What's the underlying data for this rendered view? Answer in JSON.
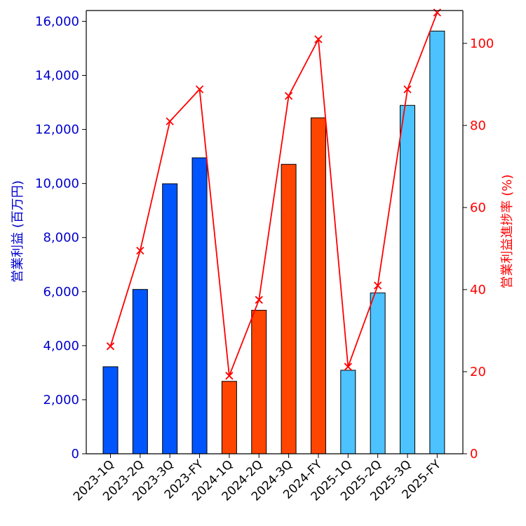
{
  "chart_data": {
    "type": "bar",
    "categories": [
      "2023-1Q",
      "2023-2Q",
      "2023-3Q",
      "2023-FY",
      "2024-1Q",
      "2024-2Q",
      "2024-3Q",
      "2024-FY",
      "2025-1Q",
      "2025-2Q",
      "2025-3Q",
      "2025-FY"
    ],
    "bar_values": [
      3220,
      6080,
      9990,
      10950,
      2680,
      5310,
      10710,
      12430,
      3090,
      5950,
      12890,
      15640
    ],
    "bar_colors": [
      "#0055ff",
      "#0055ff",
      "#0055ff",
      "#0055ff",
      "#ff4500",
      "#ff4500",
      "#ff4500",
      "#ff4500",
      "#4cc3ff",
      "#4cc3ff",
      "#4cc3ff",
      "#4cc3ff"
    ],
    "line_values": [
      26.2,
      49.5,
      81.0,
      88.8,
      19.0,
      37.5,
      87.2,
      101.0,
      21.2,
      41.0,
      88.8,
      107.5
    ],
    "line_color": "#ff0000",
    "ylabel": "営業利益 (百万円)",
    "y2label": "営業利益進捗率 (%)",
    "ylim": [
      0,
      16400
    ],
    "y2lim": [
      0,
      108
    ],
    "yticks": [
      0,
      2000,
      4000,
      6000,
      8000,
      10000,
      12000,
      14000,
      16000
    ],
    "y2ticks": [
      0,
      20,
      40,
      60,
      80,
      100
    ],
    "left_axis_color": "#0000cc",
    "right_axis_color": "#ff0000",
    "grid": false
  }
}
